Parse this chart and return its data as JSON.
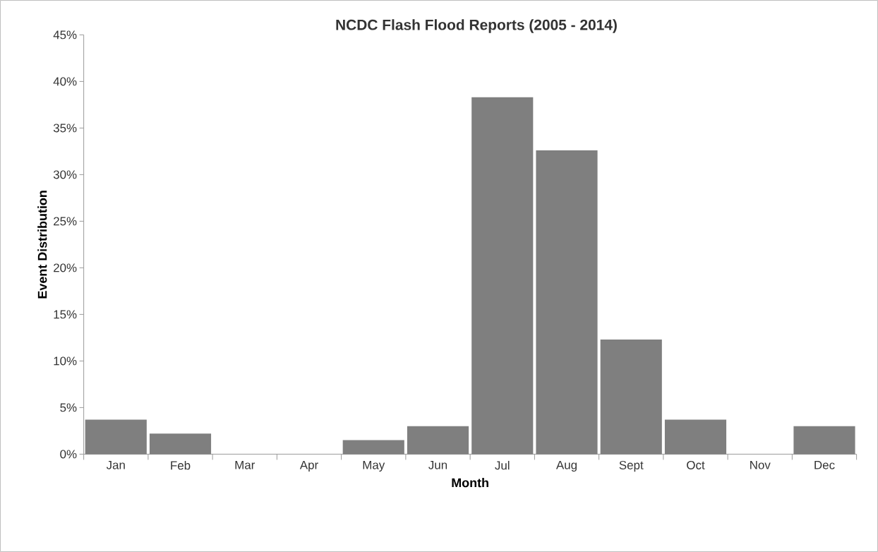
{
  "chart_data": {
    "type": "bar",
    "title": "NCDC Flash Flood Reports (2005 - 2014)",
    "xlabel": "Month",
    "ylabel": "Event Distribution",
    "categories": [
      "Jan",
      "Feb",
      "Mar",
      "Apr",
      "May",
      "Jun",
      "Jul",
      "Aug",
      "Sept",
      "Oct",
      "Nov",
      "Dec"
    ],
    "values": [
      3.7,
      2.2,
      0,
      0,
      1.5,
      3.0,
      38.3,
      32.6,
      12.3,
      3.7,
      0,
      3.0
    ],
    "color": "#7f7f7f",
    "ylim": [
      0,
      45
    ],
    "yticks": [
      {
        "value": 0,
        "label": "0%"
      },
      {
        "value": 5,
        "label": "5%"
      },
      {
        "value": 10,
        "label": "10%"
      },
      {
        "value": 15,
        "label": "15%"
      },
      {
        "value": 20,
        "label": "20%"
      },
      {
        "value": 25,
        "label": "25%"
      },
      {
        "value": 30,
        "label": "30%"
      },
      {
        "value": 35,
        "label": "35%"
      },
      {
        "value": 40,
        "label": "40%"
      },
      {
        "value": 45,
        "label": "45%"
      }
    ],
    "grid": false
  }
}
